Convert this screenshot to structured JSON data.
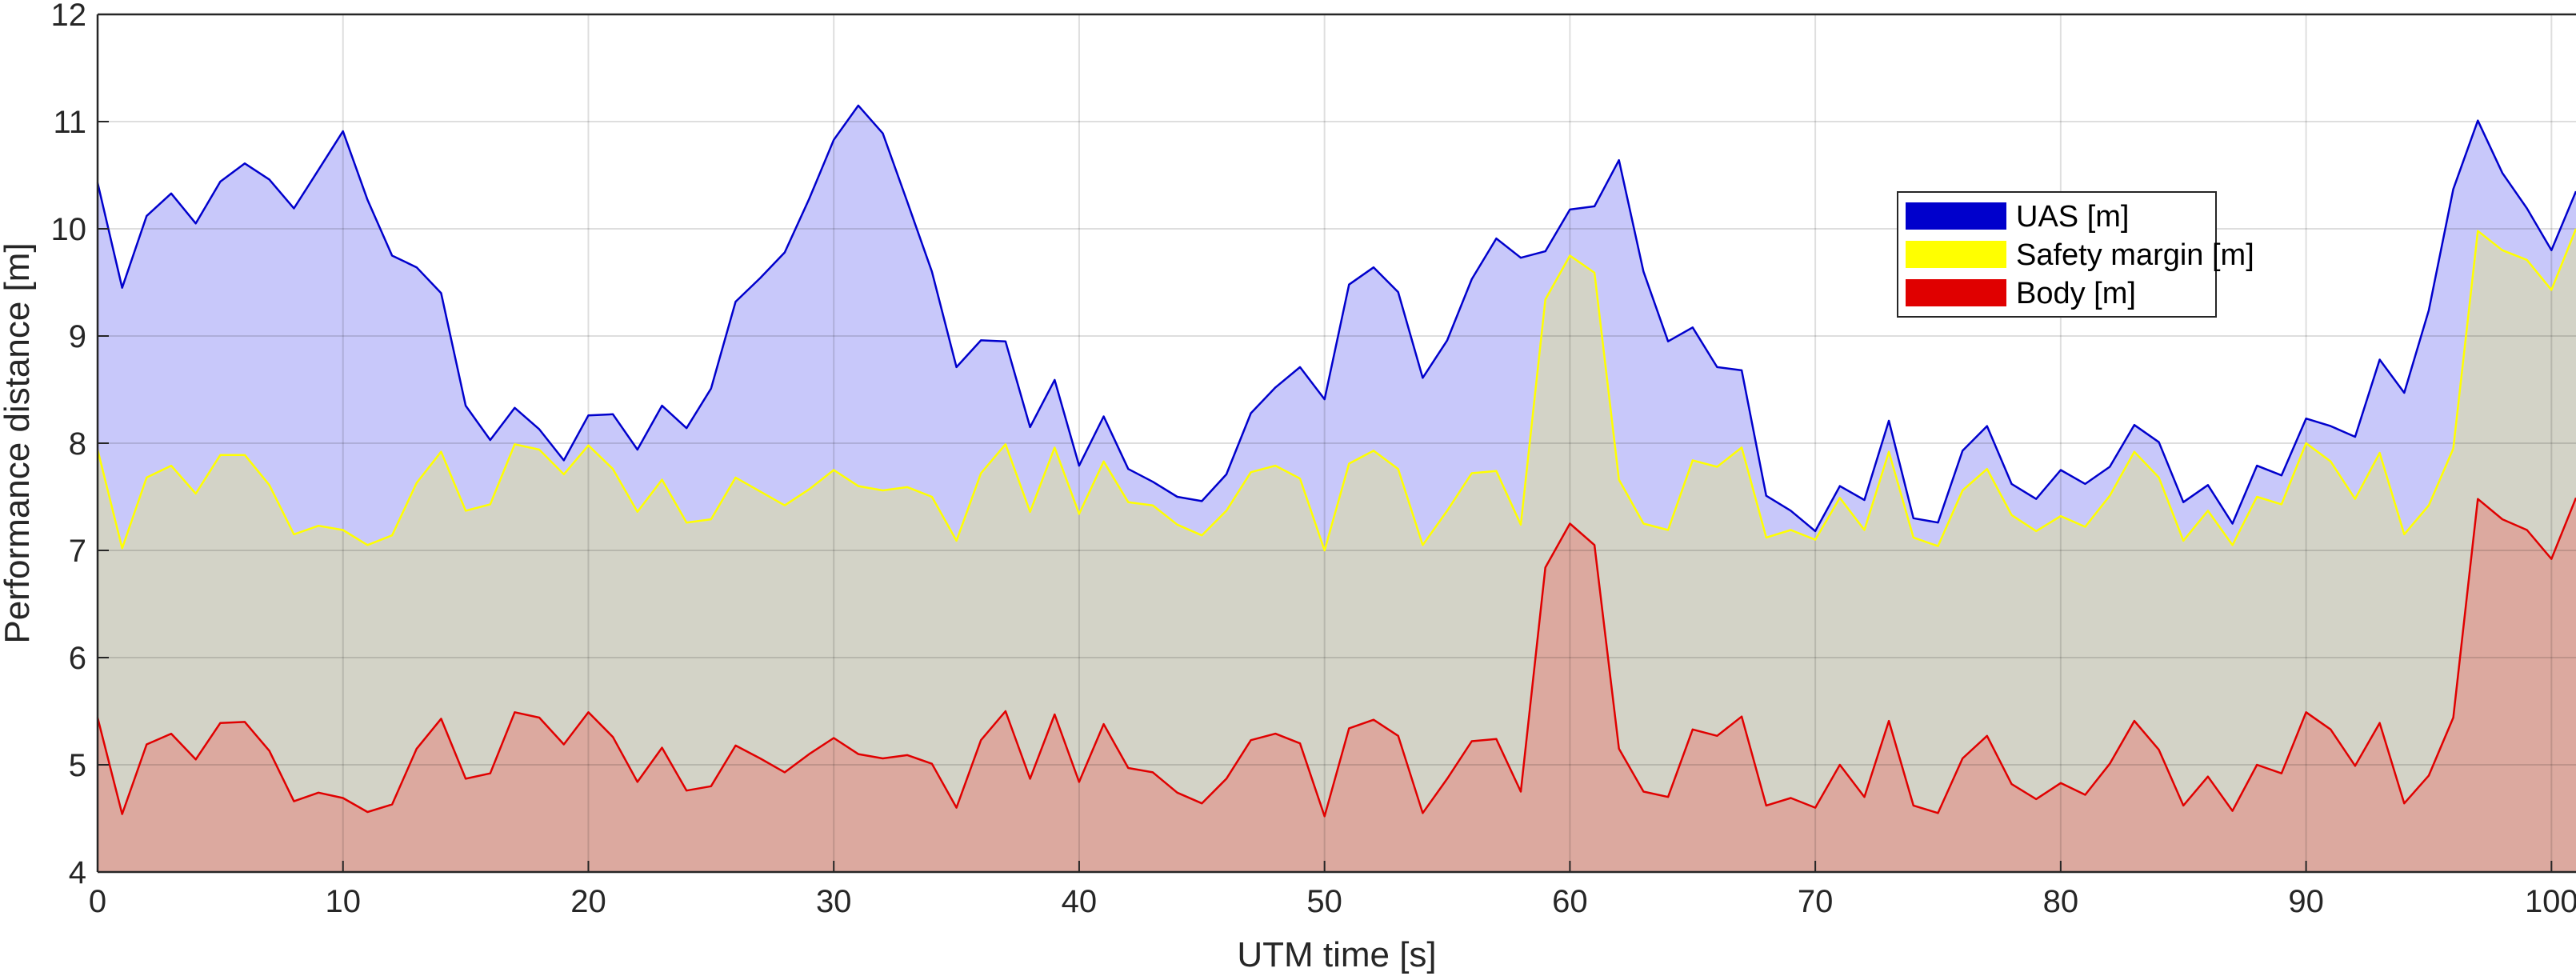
{
  "chart_data": {
    "type": "area",
    "title": "",
    "xlabel": "UTM time [s]",
    "ylabel": "Performance distance [m]",
    "xlim": [
      0,
      101
    ],
    "ylim": [
      4,
      12
    ],
    "xticks": [
      0,
      10,
      20,
      30,
      40,
      50,
      60,
      70,
      80,
      90,
      100
    ],
    "yticks": [
      4,
      5,
      6,
      7,
      8,
      9,
      10,
      11,
      12
    ],
    "grid": true,
    "legend_position": "upper-right",
    "x": [
      0,
      1,
      2,
      3,
      4,
      5,
      6,
      7,
      8,
      9,
      10,
      11,
      12,
      13,
      14,
      15,
      16,
      17,
      18,
      19,
      20,
      21,
      22,
      23,
      24,
      25,
      26,
      27,
      28,
      29,
      30,
      31,
      32,
      33,
      34,
      35,
      36,
      37,
      38,
      39,
      40,
      41,
      42,
      43,
      44,
      45,
      46,
      47,
      48,
      49,
      50,
      51,
      52,
      53,
      54,
      55,
      56,
      57,
      58,
      59,
      60,
      61,
      62,
      63,
      64,
      65,
      66,
      67,
      68,
      69,
      70,
      71,
      72,
      73,
      74,
      75,
      76,
      77,
      78,
      79,
      80,
      81,
      82,
      83,
      84,
      85,
      86,
      87,
      88,
      89,
      90,
      91,
      92,
      93,
      94,
      95,
      96,
      97,
      98,
      99,
      100,
      101
    ],
    "series": [
      {
        "name": "UAS [m]",
        "line_color": "#0000cc",
        "fill_color": "#c8c8fa",
        "values": [
          10.43,
          9.45,
          10.12,
          10.33,
          10.05,
          10.44,
          10.61,
          10.46,
          10.19,
          10.55,
          10.91,
          10.27,
          9.75,
          9.64,
          9.4,
          8.35,
          8.03,
          8.33,
          8.13,
          7.84,
          8.26,
          8.27,
          7.94,
          8.35,
          8.14,
          8.51,
          9.32,
          9.54,
          9.78,
          10.28,
          10.83,
          11.15,
          10.89,
          10.25,
          9.6,
          8.71,
          8.96,
          8.95,
          8.15,
          8.59,
          7.79,
          8.25,
          7.76,
          7.64,
          7.5,
          7.46,
          7.71,
          8.28,
          8.52,
          8.71,
          8.41,
          9.48,
          9.64,
          9.41,
          8.61,
          8.96,
          9.53,
          9.91,
          9.73,
          9.79,
          10.18,
          10.21,
          10.64,
          9.6,
          8.95,
          9.08,
          8.71,
          8.68,
          7.51,
          7.37,
          7.18,
          7.6,
          7.47,
          8.21,
          7.3,
          7.26,
          7.93,
          8.16,
          7.62,
          7.48,
          7.75,
          7.62,
          7.78,
          8.17,
          8.01,
          7.45,
          7.61,
          7.25,
          7.79,
          7.7,
          8.23,
          8.16,
          8.06,
          8.78,
          8.47,
          9.24,
          10.37,
          11.01,
          10.52,
          10.19,
          9.8,
          10.35
        ]
      },
      {
        "name": "Safety margin [m]",
        "line_color": "#ffff00",
        "fill_color": "#d3d3c7",
        "values": [
          7.94,
          7.02,
          7.68,
          7.79,
          7.53,
          7.89,
          7.89,
          7.61,
          7.15,
          7.23,
          7.19,
          7.05,
          7.14,
          7.63,
          7.92,
          7.37,
          7.43,
          7.99,
          7.94,
          7.71,
          7.98,
          7.76,
          7.36,
          7.66,
          7.26,
          7.29,
          7.68,
          7.55,
          7.42,
          7.57,
          7.75,
          7.6,
          7.56,
          7.59,
          7.5,
          7.09,
          7.72,
          7.99,
          7.36,
          7.96,
          7.34,
          7.83,
          7.45,
          7.42,
          7.24,
          7.14,
          7.37,
          7.73,
          7.79,
          7.67,
          7.0,
          7.81,
          7.93,
          7.76,
          7.05,
          7.37,
          7.72,
          7.74,
          7.24,
          9.34,
          9.75,
          9.59,
          7.66,
          7.25,
          7.19,
          7.84,
          7.78,
          7.96,
          7.12,
          7.19,
          7.1,
          7.49,
          7.19,
          7.92,
          7.12,
          7.04,
          7.56,
          7.76,
          7.33,
          7.18,
          7.32,
          7.22,
          7.51,
          7.92,
          7.68,
          7.09,
          7.37,
          7.05,
          7.5,
          7.43,
          8.0,
          7.83,
          7.48,
          7.91,
          7.15,
          7.42,
          7.95,
          9.98,
          9.8,
          9.71,
          9.43,
          10.0
        ]
      },
      {
        "name": "Body [m]",
        "line_color": "#e00000",
        "fill_color": "#dca99f",
        "values": [
          5.44,
          4.54,
          5.19,
          5.29,
          5.05,
          5.39,
          5.4,
          5.13,
          4.66,
          4.74,
          4.69,
          4.56,
          4.63,
          5.15,
          5.43,
          4.87,
          4.92,
          5.49,
          5.44,
          5.19,
          5.49,
          5.26,
          4.84,
          5.16,
          4.76,
          4.8,
          5.18,
          5.06,
          4.93,
          5.1,
          5.25,
          5.1,
          5.06,
          5.09,
          5.01,
          4.6,
          5.23,
          5.5,
          4.87,
          5.47,
          4.84,
          5.38,
          4.97,
          4.93,
          4.74,
          4.64,
          4.87,
          5.23,
          5.29,
          5.2,
          4.52,
          5.34,
          5.42,
          5.27,
          4.55,
          4.87,
          5.22,
          5.24,
          4.75,
          6.84,
          7.25,
          7.05,
          5.15,
          4.75,
          4.7,
          5.33,
          5.27,
          5.45,
          4.62,
          4.69,
          4.6,
          5.0,
          4.7,
          5.41,
          4.62,
          4.55,
          5.06,
          5.27,
          4.82,
          4.68,
          4.83,
          4.72,
          5.01,
          5.41,
          5.14,
          4.62,
          4.89,
          4.57,
          5.0,
          4.92,
          5.49,
          5.33,
          4.99,
          5.39,
          4.64,
          4.9,
          5.44,
          7.48,
          7.29,
          7.19,
          6.92,
          7.49
        ]
      }
    ]
  }
}
